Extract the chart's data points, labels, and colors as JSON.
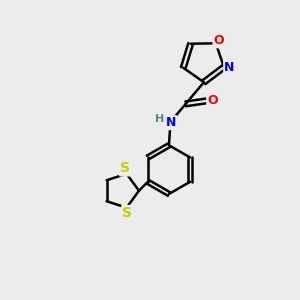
{
  "background_color": "#ececec",
  "bond_color": "#000000",
  "atom_colors": {
    "O": "#ff0000",
    "N": "#0000ff",
    "S": "#cccc00",
    "H": "#4a8a8a",
    "C": "#000000"
  },
  "figsize": [
    3.0,
    3.0
  ],
  "dpi": 100
}
